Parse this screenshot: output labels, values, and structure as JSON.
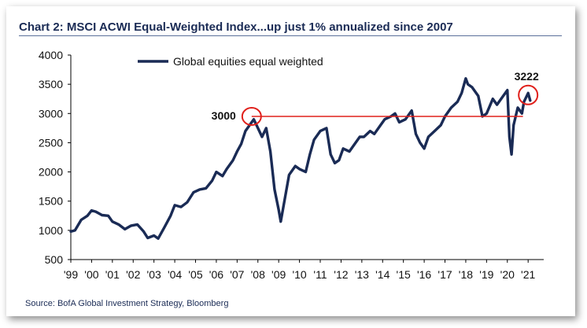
{
  "title": "Chart 2: MSCI ACWI Equal-Weighted Index...up just 1% annualized since 2007",
  "source": "Source: BofA Global Investment Strategy, Bloomberg",
  "colors": {
    "series": "#1a2b55",
    "reference": "#e0201b",
    "title": "#1a2b55"
  },
  "chart_data": {
    "type": "line",
    "legend": "top-left",
    "grid": false,
    "xlim": [
      1999.0,
      2021.75
    ],
    "ylim": [
      500,
      4000
    ],
    "yticks": [
      500,
      1000,
      1500,
      2000,
      2500,
      3000,
      3500,
      4000
    ],
    "xticks": [
      {
        "label": "'99",
        "x": 1999.0
      },
      {
        "label": "'00",
        "x": 2000.0
      },
      {
        "label": "'01",
        "x": 2001.0
      },
      {
        "label": "'02",
        "x": 2002.0
      },
      {
        "label": "'03",
        "x": 2003.0
      },
      {
        "label": "'04",
        "x": 2004.0
      },
      {
        "label": "'05",
        "x": 2005.0
      },
      {
        "label": "'06",
        "x": 2006.0
      },
      {
        "label": "'07",
        "x": 2007.0
      },
      {
        "label": "'08",
        "x": 2008.0
      },
      {
        "label": "'09",
        "x": 2009.0
      },
      {
        "label": "'10",
        "x": 2010.0
      },
      {
        "label": "'11",
        "x": 2011.0
      },
      {
        "label": "'12",
        "x": 2012.0
      },
      {
        "label": "'13",
        "x": 2013.0
      },
      {
        "label": "'14",
        "x": 2014.0
      },
      {
        "label": "'15",
        "x": 2015.0
      },
      {
        "label": "'16",
        "x": 2016.0
      },
      {
        "label": "'17",
        "x": 2017.0
      },
      {
        "label": "'18",
        "x": 2018.0
      },
      {
        "label": "'19",
        "x": 2019.0
      },
      {
        "label": "'20",
        "x": 2020.0
      },
      {
        "label": "'21",
        "x": 2021.0
      }
    ],
    "series": [
      {
        "name": "Global equities equal weighted",
        "x": [
          1999.0,
          1999.2,
          1999.5,
          1999.8,
          2000.0,
          2000.2,
          2000.5,
          2000.8,
          2001.0,
          2001.3,
          2001.6,
          2001.9,
          2002.2,
          2002.5,
          2002.7,
          2003.0,
          2003.2,
          2003.5,
          2003.8,
          2004.0,
          2004.3,
          2004.6,
          2004.9,
          2005.2,
          2005.5,
          2005.8,
          2006.0,
          2006.3,
          2006.5,
          2006.8,
          2007.0,
          2007.2,
          2007.4,
          2007.6,
          2007.8,
          2008.0,
          2008.2,
          2008.4,
          2008.6,
          2008.8,
          2009.0,
          2009.1,
          2009.3,
          2009.5,
          2009.8,
          2010.0,
          2010.3,
          2010.5,
          2010.7,
          2011.0,
          2011.3,
          2011.5,
          2011.7,
          2011.9,
          2012.1,
          2012.4,
          2012.6,
          2012.9,
          2013.1,
          2013.4,
          2013.6,
          2013.9,
          2014.1,
          2014.4,
          2014.6,
          2014.8,
          2015.1,
          2015.4,
          2015.6,
          2015.8,
          2016.0,
          2016.2,
          2016.5,
          2016.8,
          2017.0,
          2017.3,
          2017.6,
          2017.8,
          2018.0,
          2018.1,
          2018.3,
          2018.6,
          2018.8,
          2019.0,
          2019.3,
          2019.5,
          2019.8,
          2020.0,
          2020.1,
          2020.2,
          2020.3,
          2020.5,
          2020.7,
          2020.8,
          2021.0,
          2021.1
        ],
        "y": [
          980,
          1000,
          1180,
          1250,
          1340,
          1320,
          1260,
          1250,
          1150,
          1100,
          1020,
          1080,
          1100,
          980,
          870,
          910,
          860,
          1050,
          1250,
          1430,
          1400,
          1480,
          1650,
          1700,
          1720,
          1850,
          2000,
          1930,
          2050,
          2200,
          2350,
          2480,
          2700,
          2800,
          2900,
          2750,
          2600,
          2750,
          2350,
          1700,
          1350,
          1150,
          1550,
          1950,
          2100,
          2050,
          2000,
          2300,
          2550,
          2700,
          2750,
          2300,
          2150,
          2200,
          2400,
          2350,
          2450,
          2600,
          2600,
          2700,
          2650,
          2800,
          2900,
          2950,
          3000,
          2850,
          2900,
          3050,
          2650,
          2500,
          2400,
          2600,
          2700,
          2800,
          2950,
          3100,
          3200,
          3350,
          3600,
          3500,
          3450,
          3300,
          2950,
          3000,
          3250,
          3150,
          3300,
          3400,
          2600,
          2300,
          2800,
          3100,
          3000,
          3200,
          3350,
          3222
        ]
      }
    ],
    "reference_line": {
      "from_x": 2007.7,
      "to_x": 2020.75,
      "y": 2950
    },
    "annotations": [
      {
        "text": "3000",
        "x": 2007.7,
        "y": 2950
      },
      {
        "text": "3222",
        "x": 2021.0,
        "y": 3330
      }
    ]
  }
}
